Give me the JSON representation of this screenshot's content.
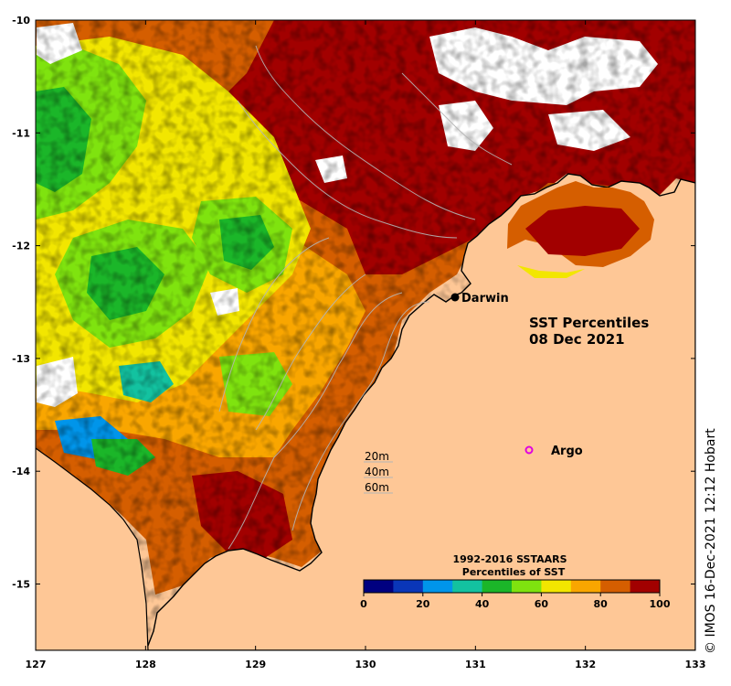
{
  "title": {
    "line1": "SST Percentiles",
    "line2": "08 Dec 2021"
  },
  "credit": "© IMOS 16-Dec-2021 12:12 Hobart",
  "places": {
    "darwin": "Darwin",
    "argo": "Argo"
  },
  "depth_legend": [
    "20m",
    "40m",
    "60m"
  ],
  "colorbar": {
    "title1": "1992-2016 SSTAARS",
    "title2": "Percentiles of SST",
    "ticks": [
      "0",
      "20",
      "40",
      "60",
      "80",
      "100"
    ],
    "colors": [
      "#000080",
      "#0a36b8",
      "#0095ea",
      "#13c2a0",
      "#1bb629",
      "#7fe30f",
      "#f2e600",
      "#f9a600",
      "#d55e00",
      "#a20000"
    ]
  },
  "map": {
    "x_ticks": [
      "127",
      "128",
      "129",
      "130",
      "131",
      "132",
      "133"
    ],
    "y_ticks": [
      "-10",
      "-11",
      "-12",
      "-13",
      "-14",
      "-15"
    ],
    "land_color": "#fec796",
    "nodata_color": "#ffffff"
  }
}
